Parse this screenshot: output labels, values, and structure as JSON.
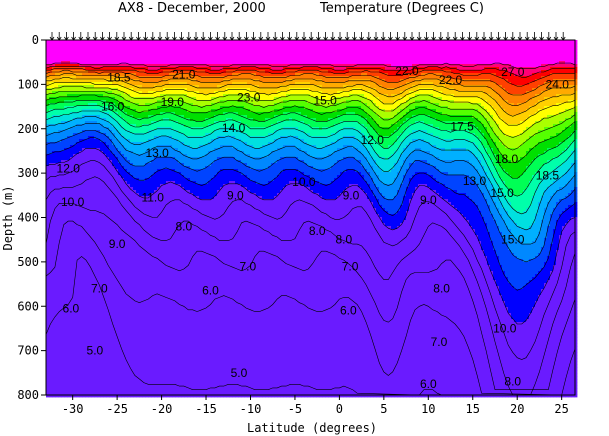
{
  "chart_data": {
    "type": "heatmap",
    "title": "AX8 - December, 2000",
    "subtitle": "Temperature (Degrees C)",
    "xlabel": "Latitude (degrees)",
    "ylabel": "Depth (m)",
    "xlim": [
      -33,
      26.5
    ],
    "ylim": [
      800,
      0
    ],
    "x_ticks": [
      -30,
      -25,
      -20,
      -15,
      -10,
      -5,
      0,
      5,
      10,
      15,
      20,
      25
    ],
    "y_ticks": [
      0,
      100,
      200,
      300,
      400,
      500,
      600,
      700,
      800
    ],
    "contour_levels": [
      5,
      6,
      7,
      8,
      9,
      10,
      11,
      12,
      13,
      14,
      15,
      16,
      17,
      18,
      19,
      20,
      21,
      22,
      23,
      24,
      25,
      26,
      27
    ],
    "level_colors": [
      "#6a1bff",
      "#6a1bff",
      "#6a1bff",
      "#6a1bff",
      "#6a1bff",
      "#0000ff",
      "#0044ff",
      "#0088ff",
      "#00b0ff",
      "#00e0e0",
      "#00ffaa",
      "#00ff55",
      "#00e000",
      "#55ff00",
      "#aaff00",
      "#ffff00",
      "#ffd000",
      "#ffaa00",
      "#ff8000",
      "#ff4000",
      "#ff0000",
      "#ff0077",
      "#ff00ff"
    ],
    "contour_labels": [
      {
        "text": "18.5",
        "x": -24.8,
        "y": 85
      },
      {
        "text": "21.0",
        "x": -17.5,
        "y": 78
      },
      {
        "text": "16.0",
        "x": -25.5,
        "y": 150
      },
      {
        "text": "19.0",
        "x": -18.8,
        "y": 140
      },
      {
        "text": "23.0",
        "x": -10.2,
        "y": 130
      },
      {
        "text": "15.0",
        "x": -1.6,
        "y": 136
      },
      {
        "text": "14.0",
        "x": -11.9,
        "y": 198
      },
      {
        "text": "13.0",
        "x": -20.5,
        "y": 255
      },
      {
        "text": "12.0",
        "x": -30.5,
        "y": 290
      },
      {
        "text": "12.0",
        "x": 3.7,
        "y": 225
      },
      {
        "text": "11.0",
        "x": -21,
        "y": 355
      },
      {
        "text": "10.0",
        "x": -30,
        "y": 365
      },
      {
        "text": "9.0",
        "x": -11.7,
        "y": 350
      },
      {
        "text": "10.0",
        "x": -4,
        "y": 320
      },
      {
        "text": "9.0",
        "x": 1.3,
        "y": 350
      },
      {
        "text": "9.0",
        "x": 10,
        "y": 360
      },
      {
        "text": "8.0",
        "x": -17.5,
        "y": 420
      },
      {
        "text": "9.0",
        "x": -25,
        "y": 460
      },
      {
        "text": "8.0",
        "x": -2.5,
        "y": 430
      },
      {
        "text": "8.0",
        "x": 0.5,
        "y": 450
      },
      {
        "text": "7.0",
        "x": -10.3,
        "y": 510
      },
      {
        "text": "7.0",
        "x": -27,
        "y": 560
      },
      {
        "text": "6.0",
        "x": -14.5,
        "y": 565
      },
      {
        "text": "7.0",
        "x": 1.2,
        "y": 510
      },
      {
        "text": "6.0",
        "x": -30.2,
        "y": 605
      },
      {
        "text": "6.0",
        "x": 1,
        "y": 610
      },
      {
        "text": "8.0",
        "x": 11.5,
        "y": 560
      },
      {
        "text": "5.0",
        "x": -27.5,
        "y": 700
      },
      {
        "text": "5.0",
        "x": -11.3,
        "y": 750
      },
      {
        "text": "7.0",
        "x": 11.2,
        "y": 680
      },
      {
        "text": "10.0",
        "x": 18.6,
        "y": 650
      },
      {
        "text": "6.0",
        "x": 10,
        "y": 775
      },
      {
        "text": "8.0",
        "x": 19.5,
        "y": 770
      },
      {
        "text": "27.0",
        "x": 19.5,
        "y": 72
      },
      {
        "text": "24.0",
        "x": 24.5,
        "y": 100
      },
      {
        "text": "22.0",
        "x": 7.6,
        "y": 70
      },
      {
        "text": "22.0",
        "x": 12.5,
        "y": 90
      },
      {
        "text": "17.5",
        "x": 13.8,
        "y": 195
      },
      {
        "text": "18.0",
        "x": 18.8,
        "y": 268
      },
      {
        "text": "15.0",
        "x": 18.3,
        "y": 345
      },
      {
        "text": "13.0",
        "x": 15.2,
        "y": 318
      },
      {
        "text": "15.0",
        "x": 19.5,
        "y": 450
      },
      {
        "text": "18.5",
        "x": 23.4,
        "y": 305
      }
    ]
  }
}
